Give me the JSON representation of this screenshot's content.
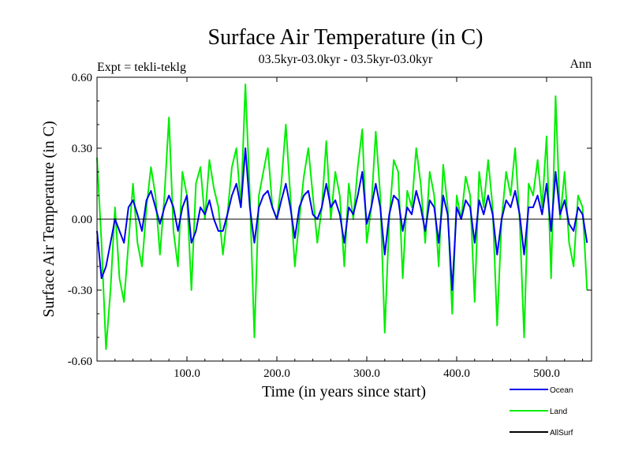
{
  "chart_data": {
    "type": "line",
    "title": "Surface Air Temperature (in C)",
    "subtitle": "03.5kyr-03.0kyr - 03.5kyr-03.0kyr",
    "left_label": "Expt = tekli-teklg",
    "right_label": "Ann",
    "xlabel": "Time (in years since start)",
    "ylabel": "Surface Air Temperature (in C)",
    "xlim": [
      0,
      550
    ],
    "ylim": [
      -0.6,
      0.6
    ],
    "x_ticks": [
      100,
      200,
      300,
      400,
      500
    ],
    "x_tick_labels": [
      "100.0",
      "200.0",
      "300.0",
      "400.0",
      "500.0"
    ],
    "y_ticks": [
      0.6,
      0.3,
      0.0,
      -0.3,
      -0.6
    ],
    "y_tick_labels": [
      "0.60",
      "0.30",
      "0.00",
      "-0.30",
      "-0.60"
    ],
    "reference_line": 0.0,
    "legend_position": "bottom-right",
    "series": [
      {
        "name": "Land",
        "color": "#00ee00",
        "x_step": 5,
        "values": [
          0.26,
          -0.1,
          -0.55,
          -0.3,
          0.05,
          -0.25,
          -0.35,
          -0.1,
          0.15,
          -0.1,
          -0.2,
          0.05,
          0.22,
          0.1,
          -0.15,
          0.1,
          0.43,
          -0.05,
          -0.2,
          0.2,
          0.1,
          -0.3,
          0.15,
          0.22,
          0.0,
          0.25,
          0.13,
          0.05,
          -0.15,
          0.02,
          0.22,
          0.3,
          0.05,
          0.57,
          0.1,
          -0.5,
          0.1,
          0.2,
          0.3,
          0.05,
          0.0,
          0.15,
          0.4,
          0.1,
          -0.2,
          0.0,
          0.18,
          0.3,
          0.1,
          -0.1,
          0.05,
          0.33,
          0.0,
          0.2,
          0.1,
          -0.2,
          0.15,
          0.0,
          0.22,
          0.38,
          -0.1,
          0.05,
          0.37,
          0.1,
          -0.48,
          0.0,
          0.25,
          0.2,
          -0.25,
          0.12,
          0.05,
          0.3,
          0.15,
          -0.1,
          0.2,
          0.1,
          -0.2,
          0.23,
          0.05,
          -0.4,
          0.1,
          0.0,
          0.18,
          0.1,
          -0.35,
          0.2,
          0.05,
          0.25,
          0.05,
          -0.45,
          0.0,
          0.2,
          0.1,
          0.3,
          0.0,
          -0.5,
          0.15,
          0.1,
          0.25,
          0.05,
          0.35,
          -0.25,
          0.52,
          0.0,
          0.2,
          -0.1,
          -0.2,
          0.1,
          0.05,
          -0.3
        ]
      },
      {
        "name": "Ocean",
        "color": "#0000ee",
        "x_step": 5,
        "values": [
          -0.05,
          -0.25,
          -0.2,
          -0.1,
          0.0,
          -0.05,
          -0.1,
          0.05,
          0.08,
          0.02,
          -0.05,
          0.08,
          0.12,
          0.05,
          -0.02,
          0.05,
          0.1,
          0.05,
          -0.05,
          0.05,
          0.1,
          -0.1,
          -0.05,
          0.05,
          0.02,
          0.08,
          0.0,
          -0.05,
          -0.05,
          0.02,
          0.1,
          0.15,
          0.05,
          0.3,
          0.05,
          -0.1,
          0.05,
          0.1,
          0.12,
          0.05,
          0.0,
          0.08,
          0.15,
          0.05,
          -0.08,
          0.05,
          0.1,
          0.12,
          0.02,
          0.0,
          0.05,
          0.15,
          0.05,
          0.08,
          0.02,
          -0.1,
          0.05,
          0.02,
          0.1,
          0.2,
          -0.02,
          0.05,
          0.15,
          0.05,
          -0.15,
          0.02,
          0.1,
          0.08,
          -0.05,
          0.05,
          0.02,
          0.12,
          0.05,
          -0.05,
          0.08,
          0.05,
          -0.1,
          0.1,
          0.02,
          -0.3,
          0.05,
          0.0,
          0.08,
          0.05,
          -0.1,
          0.08,
          0.02,
          0.1,
          0.02,
          -0.15,
          0.0,
          0.08,
          0.05,
          0.12,
          0.02,
          -0.15,
          0.05,
          0.05,
          0.1,
          0.02,
          0.15,
          -0.05,
          0.2,
          0.02,
          0.08,
          -0.02,
          -0.05,
          0.05,
          0.02,
          -0.1
        ]
      },
      {
        "name": "AllSurf",
        "color": "#000000",
        "values": []
      }
    ]
  }
}
